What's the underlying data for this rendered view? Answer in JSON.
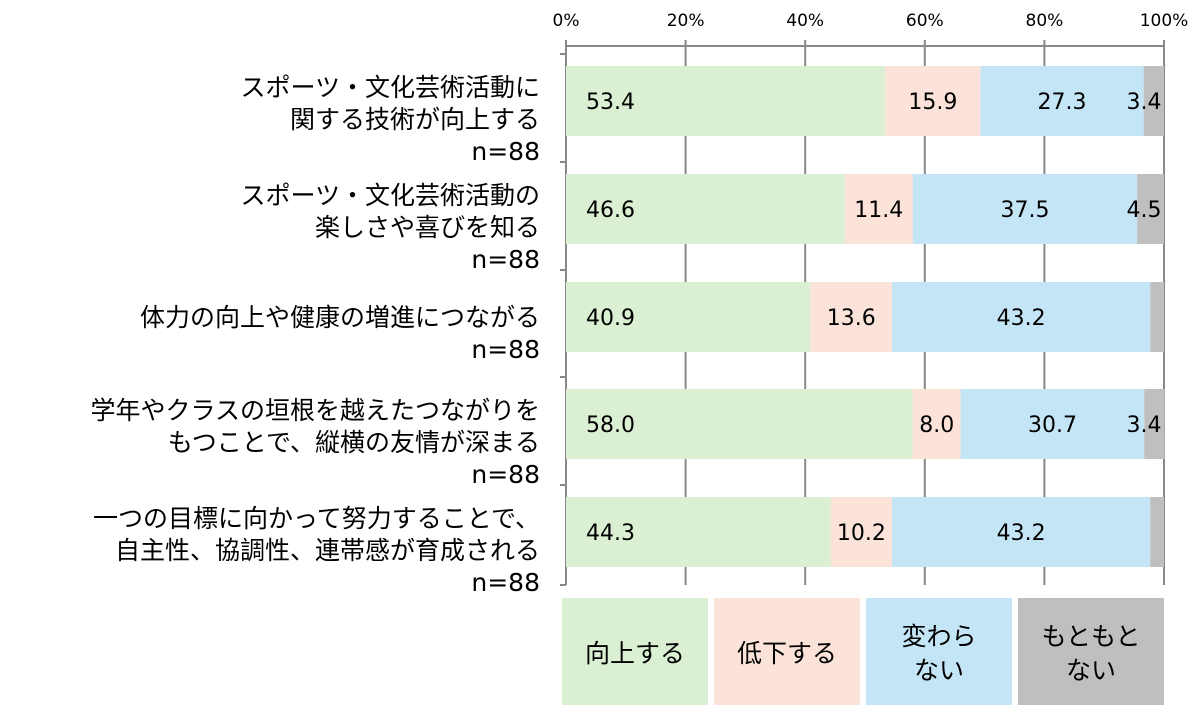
{
  "chart_data": {
    "type": "bar",
    "orientation": "horizontal",
    "stacked": "percent",
    "xlim": [
      0,
      100
    ],
    "x_ticks": [
      "0%",
      "20%",
      "40%",
      "60%",
      "80%",
      "100%"
    ],
    "grid": true,
    "legend_position": "bottom",
    "categories": [
      [
        "スポーツ・文化芸術活動に",
        "関する技術が向上する",
        "n=88"
      ],
      [
        "スポーツ・文化芸術活動の",
        "楽しさや喜びを知る",
        "n=88"
      ],
      [
        "体力の向上や健康の増進につながる",
        "n=88"
      ],
      [
        "学年やクラスの垣根を越えたつながりを",
        "もつことで、縦横の友情が深まる",
        "n=88"
      ],
      [
        "一つの目標に向かって努力することで、",
        "自主性、協調性、連帯感が育成される",
        "n=88"
      ]
    ],
    "series": [
      {
        "name": "向上する",
        "legend_lines": [
          "向上する"
        ],
        "color": "#dbf0d3",
        "values": [
          53.4,
          46.6,
          40.9,
          58.0,
          44.3
        ],
        "labels": [
          "53.4",
          "46.6",
          "40.9",
          "58.0",
          "44.3"
        ]
      },
      {
        "name": "低下する",
        "legend_lines": [
          "低下する"
        ],
        "color": "#fbe3d9",
        "values": [
          15.9,
          11.4,
          13.6,
          8.0,
          10.2
        ],
        "labels": [
          "15.9",
          "11.4",
          "13.6",
          "8.0",
          "10.2"
        ]
      },
      {
        "name": "変わらない",
        "legend_lines": [
          "変わら",
          "ない"
        ],
        "color": "#c4e5f5",
        "values": [
          27.3,
          37.5,
          43.2,
          30.7,
          43.2
        ],
        "labels": [
          "27.3",
          "37.5",
          "43.2",
          "30.7",
          "43.2"
        ]
      },
      {
        "name": "もともとない",
        "legend_lines": [
          "もともと",
          "ない"
        ],
        "color": "#bfbfbf",
        "values": [
          3.4,
          4.5,
          2.3,
          3.4,
          2.3
        ],
        "labels": [
          "3.4",
          "4.5",
          "",
          "3.4",
          ""
        ]
      }
    ]
  }
}
